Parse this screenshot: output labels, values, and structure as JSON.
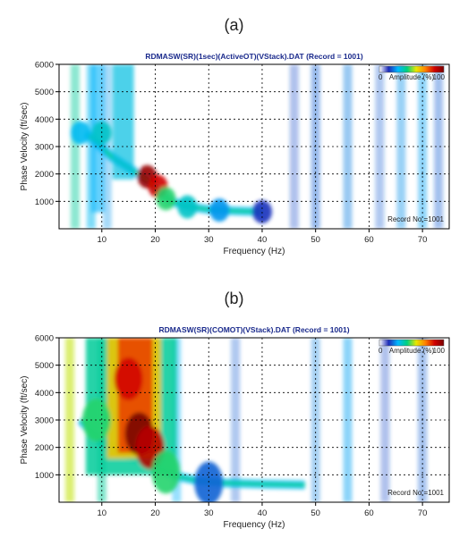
{
  "chart_data": [
    {
      "type": "heatmap",
      "panel_label": "(a)",
      "title": "RDMASW(SR)(1sec)(ActiveOT)(VStack).DAT (Record = 1001)",
      "xlabel": "Frequency (Hz)",
      "ylabel": "Phase Velocity (ft/sec)",
      "xlim": [
        2,
        75
      ],
      "ylim": [
        0,
        6000
      ],
      "xticks": [
        10,
        20,
        30,
        40,
        50,
        60,
        70
      ],
      "yticks": [
        1000,
        2000,
        3000,
        4000,
        5000,
        6000
      ],
      "grid": true,
      "colorbar": {
        "label": "Amplitude (%)",
        "min": "0",
        "max": "100",
        "position": "top-right"
      },
      "annotation": "Record No.=1001",
      "energy_peaks": [
        {
          "freq": 18.5,
          "velocity": 1900,
          "amplitude": 95
        },
        {
          "freq": 20.5,
          "velocity": 1550,
          "amplitude": 85
        },
        {
          "freq": 22,
          "velocity": 1100,
          "amplitude": 45
        },
        {
          "freq": 26,
          "velocity": 800,
          "amplitude": 35
        },
        {
          "freq": 32,
          "velocity": 680,
          "amplitude": 25
        },
        {
          "freq": 40,
          "velocity": 620,
          "amplitude": 15
        },
        {
          "freq": 10,
          "velocity": 3500,
          "amplitude": 35
        },
        {
          "freq": 6,
          "velocity": 3500,
          "amplitude": 30
        }
      ]
    },
    {
      "type": "heatmap",
      "panel_label": "(b)",
      "title": "RDMASW(SR)(COMOT)(VStack).DAT (Record = 1001)",
      "xlabel": "Frequency (Hz)",
      "ylabel": "Phase Velocity (ft/sec)",
      "xlim": [
        2,
        75
      ],
      "ylim": [
        0,
        6000
      ],
      "xticks": [
        10,
        20,
        30,
        40,
        50,
        60,
        70
      ],
      "yticks": [
        1000,
        2000,
        3000,
        4000,
        5000,
        6000
      ],
      "grid": true,
      "colorbar": {
        "label": "Amplitude (%)",
        "min": "0",
        "max": "100",
        "position": "top-right"
      },
      "annotation": "Record No.=1001",
      "energy_peaks": [
        {
          "freq": 17,
          "velocity": 2500,
          "amplitude": 100
        },
        {
          "freq": 15,
          "velocity": 4500,
          "amplitude": 85
        },
        {
          "freq": 19,
          "velocity": 2000,
          "amplitude": 90
        },
        {
          "freq": 22,
          "velocity": 1100,
          "amplitude": 45
        },
        {
          "freq": 30,
          "velocity": 700,
          "amplitude": 20
        },
        {
          "freq": 9,
          "velocity": 3000,
          "amplitude": 45
        }
      ]
    }
  ],
  "colors": {
    "title_text": "#1a2a8c",
    "grid": "#000000",
    "colormap": [
      "#ffffff",
      "#1c2bb8",
      "#00b8ff",
      "#00d080",
      "#e8e800",
      "#ff8000",
      "#d00000",
      "#7a0000"
    ]
  }
}
